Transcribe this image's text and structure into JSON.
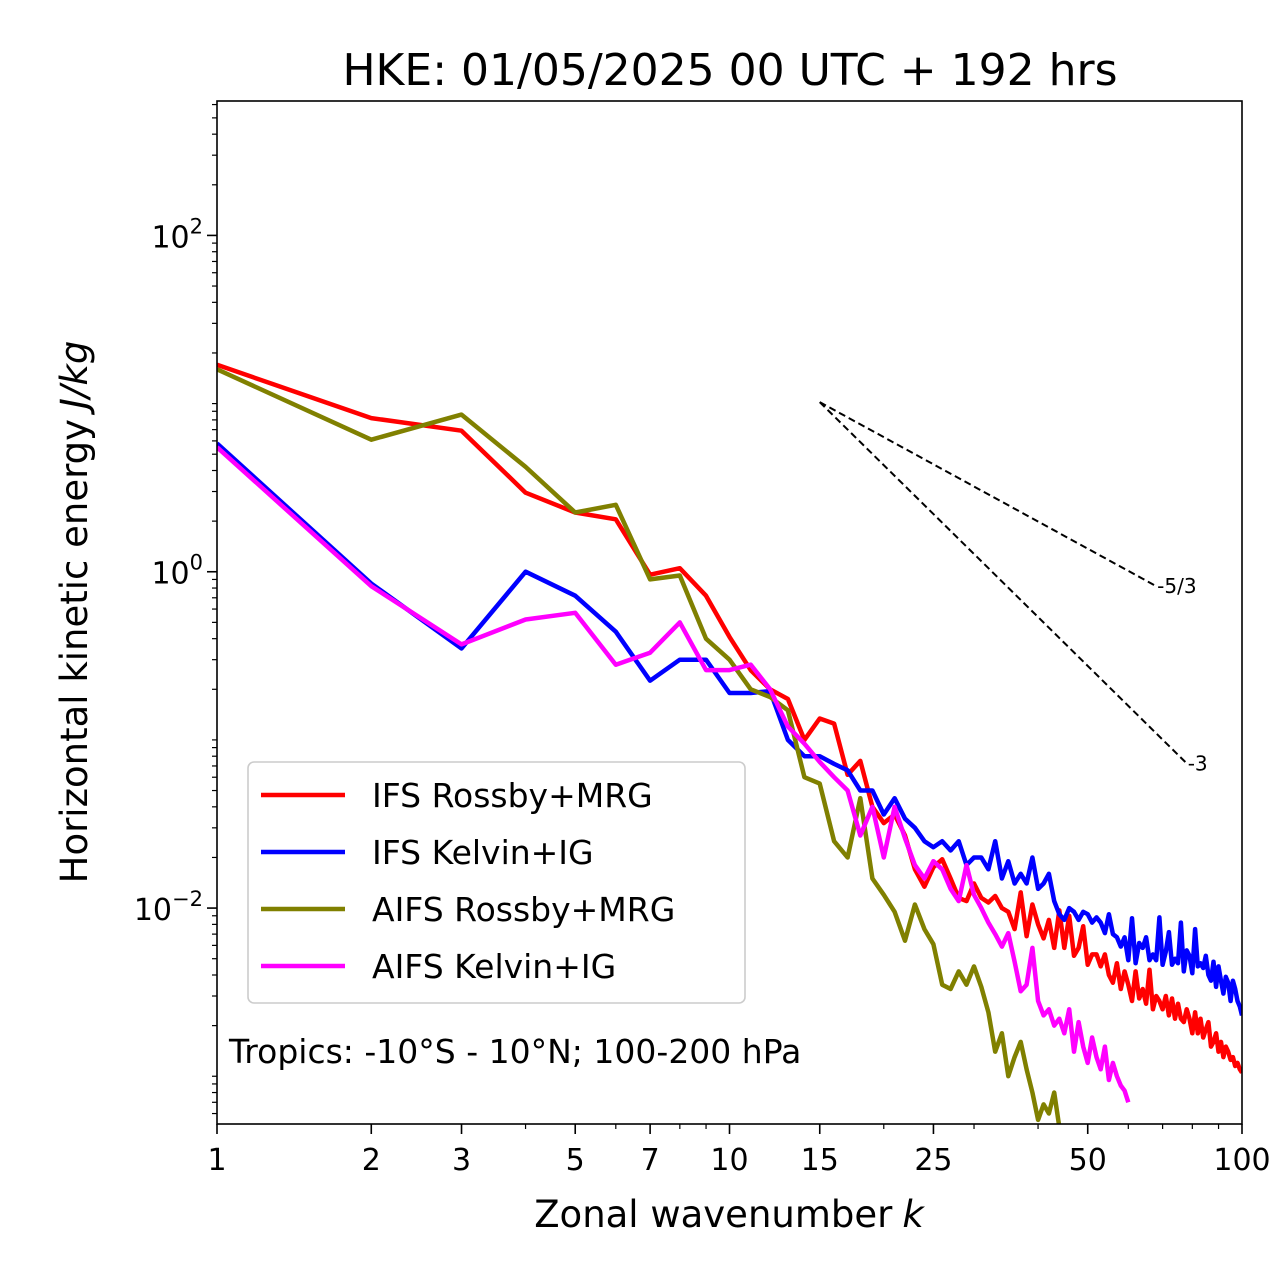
{
  "chart_data": {
    "type": "line",
    "title": "HKE: 01/05/2025 00 UTC + 192 hrs",
    "xlabel": "Zonal wavenumber",
    "xlabel_italic": "k",
    "ylabel": "Horizontal kinetic energy",
    "ylabel_italic": "J/kg",
    "xscale": "log",
    "yscale": "log",
    "xlim": [
      1,
      100
    ],
    "ylim": [
      0.00052,
      630
    ],
    "x_ticks": [
      1,
      2,
      3,
      5,
      7,
      10,
      15,
      25,
      50,
      100
    ],
    "x_tick_labels": [
      "1",
      "2",
      "3",
      "5",
      "7",
      "10",
      "15",
      "25",
      "50",
      "100"
    ],
    "y_ticks": [
      1,
      100,
      0.01
    ],
    "y_tick_labels": [
      {
        "base": "10",
        "exp": "0"
      },
      {
        "base": "10",
        "exp": "2"
      },
      {
        "base": "10",
        "exp": "−2"
      }
    ],
    "legend_position": "lower-left",
    "annotation": "Tropics: -10°S - 10°N; 100-200 hPa",
    "reference_slopes": [
      {
        "label": "-5/3",
        "slope": -1.6667,
        "x_start": 15,
        "x_end": 68,
        "y_start": 10.2
      },
      {
        "label": "-3",
        "slope": -3,
        "x_start": 15,
        "x_end": 78,
        "y_start": 10.2
      }
    ],
    "series": [
      {
        "name": "IFS Rossby+MRG",
        "color": "#ff0000",
        "x": [
          1,
          2,
          3,
          4,
          5,
          6,
          7,
          8,
          9,
          10,
          11,
          12,
          13,
          14,
          15,
          16,
          17,
          18,
          19,
          20,
          21,
          22,
          23,
          24,
          25,
          26,
          27,
          28,
          29,
          30,
          31,
          32,
          33,
          34,
          35,
          36,
          37,
          38,
          39,
          40,
          41,
          42,
          43,
          44,
          45,
          46,
          47,
          48,
          49,
          50,
          51,
          52,
          53,
          54,
          55,
          56,
          57,
          58,
          59,
          60,
          61,
          62,
          63,
          64,
          65,
          66,
          67,
          68,
          69,
          70,
          71,
          72,
          73,
          74,
          75,
          76,
          77,
          78,
          79,
          80,
          81,
          82,
          83,
          84,
          85,
          86,
          87,
          88,
          89,
          90,
          91,
          92,
          93,
          94,
          95,
          96,
          97,
          98,
          99,
          100
        ],
        "y": [
          17,
          8.2,
          6.9,
          2.95,
          2.25,
          2.05,
          0.96,
          1.05,
          0.72,
          0.41,
          0.26,
          0.2,
          0.175,
          0.1,
          0.134,
          0.125,
          0.062,
          0.075,
          0.04,
          0.032,
          0.036,
          0.027,
          0.017,
          0.0134,
          0.0175,
          0.0195,
          0.015,
          0.0115,
          0.011,
          0.014,
          0.0115,
          0.0108,
          0.0118,
          0.01,
          0.0095,
          0.0075,
          0.0124,
          0.0068,
          0.0105,
          0.008,
          0.0066,
          0.0085,
          0.0058,
          0.0097,
          0.0058,
          0.009,
          0.0052,
          0.0058,
          0.0078,
          0.0046,
          0.0053,
          0.0053,
          0.0045,
          0.0053,
          0.004,
          0.0036,
          0.0047,
          0.0033,
          0.0042,
          0.0035,
          0.0028,
          0.0042,
          0.0029,
          0.0033,
          0.0027,
          0.0043,
          0.0025,
          0.003,
          0.0028,
          0.0025,
          0.003,
          0.0023,
          0.0029,
          0.0022,
          0.0027,
          0.0022,
          0.0021,
          0.0025,
          0.0022,
          0.0018,
          0.0024,
          0.0018,
          0.0022,
          0.0017,
          0.0019,
          0.0021,
          0.0015,
          0.0016,
          0.0018,
          0.0014,
          0.0016,
          0.0013,
          0.0015,
          0.0014,
          0.00125,
          0.0013,
          0.00115,
          0.0012,
          0.0011,
          0.00105
        ]
      },
      {
        "name": "IFS Kelvin+IG",
        "color": "#0000ff",
        "x": [
          1,
          2,
          3,
          4,
          5,
          6,
          7,
          8,
          9,
          10,
          11,
          12,
          13,
          14,
          15,
          16,
          17,
          18,
          19,
          20,
          21,
          22,
          23,
          24,
          25,
          26,
          27,
          28,
          29,
          30,
          31,
          32,
          33,
          34,
          35,
          36,
          37,
          38,
          39,
          40,
          41,
          42,
          43,
          44,
          45,
          46,
          47,
          48,
          49,
          50,
          51,
          52,
          53,
          54,
          55,
          56,
          57,
          58,
          59,
          60,
          61,
          62,
          63,
          64,
          65,
          66,
          67,
          68,
          69,
          70,
          71,
          72,
          73,
          74,
          75,
          76,
          77,
          78,
          79,
          80,
          81,
          82,
          83,
          84,
          85,
          86,
          87,
          88,
          89,
          90,
          91,
          92,
          93,
          94,
          95,
          96,
          97,
          98,
          99,
          100
        ],
        "y": [
          5.8,
          0.85,
          0.35,
          1.0,
          0.72,
          0.44,
          0.225,
          0.3,
          0.3,
          0.19,
          0.19,
          0.195,
          0.1,
          0.08,
          0.08,
          0.072,
          0.066,
          0.05,
          0.05,
          0.036,
          0.045,
          0.034,
          0.03,
          0.025,
          0.023,
          0.025,
          0.022,
          0.025,
          0.018,
          0.02,
          0.02,
          0.017,
          0.025,
          0.015,
          0.019,
          0.014,
          0.016,
          0.014,
          0.02,
          0.013,
          0.014,
          0.016,
          0.011,
          0.0092,
          0.0085,
          0.01,
          0.0095,
          0.0085,
          0.0095,
          0.0092,
          0.0082,
          0.0088,
          0.0082,
          0.0071,
          0.0092,
          0.007,
          0.0067,
          0.0059,
          0.0067,
          0.0049,
          0.0087,
          0.0047,
          0.0062,
          0.0058,
          0.0067,
          0.0049,
          0.0053,
          0.0049,
          0.0088,
          0.0046,
          0.0055,
          0.0072,
          0.0046,
          0.005,
          0.0047,
          0.0082,
          0.0042,
          0.0056,
          0.0052,
          0.0041,
          0.0075,
          0.0045,
          0.0047,
          0.0044,
          0.0052,
          0.004,
          0.0037,
          0.0048,
          0.0034,
          0.0045,
          0.0037,
          0.0031,
          0.0039,
          0.0036,
          0.0028,
          0.0037,
          0.0033,
          0.0028,
          0.0026,
          0.0023
        ]
      },
      {
        "name": "AIFS Rossby+MRG",
        "color": "#808000",
        "x": [
          1,
          2,
          3,
          4,
          5,
          6,
          7,
          8,
          9,
          10,
          11,
          12,
          13,
          14,
          15,
          16,
          17,
          18,
          19,
          20,
          21,
          22,
          23,
          24,
          25,
          26,
          27,
          28,
          29,
          30,
          31,
          32,
          33,
          34,
          35,
          36,
          37,
          38,
          39,
          40,
          41,
          42,
          43,
          44,
          45,
          46,
          47,
          48,
          49,
          50
        ],
        "y": [
          16,
          6.1,
          8.6,
          4.2,
          2.25,
          2.5,
          0.9,
          0.95,
          0.4,
          0.3,
          0.2,
          0.18,
          0.15,
          0.06,
          0.055,
          0.025,
          0.02,
          0.045,
          0.015,
          0.012,
          0.0095,
          0.0064,
          0.0105,
          0.0075,
          0.0061,
          0.0035,
          0.0033,
          0.0042,
          0.0035,
          0.0045,
          0.0034,
          0.0024,
          0.0014,
          0.0018,
          0.001,
          0.0013,
          0.0016,
          0.0011,
          0.0008,
          0.00055,
          0.00068,
          0.0006,
          0.0008,
          0.0005,
          0.00045,
          0.00042,
          0.0004,
          0.00038,
          0.00036,
          0.00033
        ]
      },
      {
        "name": "AIFS Kelvin+IG",
        "color": "#ff00ff",
        "x": [
          1,
          2,
          3,
          4,
          5,
          6,
          7,
          8,
          9,
          10,
          11,
          12,
          13,
          14,
          15,
          16,
          17,
          18,
          19,
          20,
          21,
          22,
          23,
          24,
          25,
          26,
          27,
          28,
          29,
          30,
          31,
          32,
          33,
          34,
          35,
          36,
          37,
          38,
          39,
          40,
          41,
          42,
          43,
          44,
          45,
          46,
          47,
          48,
          49,
          50,
          51,
          52,
          53,
          54,
          55,
          56,
          57,
          58,
          59,
          60
        ],
        "y": [
          5.5,
          0.82,
          0.37,
          0.52,
          0.57,
          0.28,
          0.33,
          0.5,
          0.26,
          0.26,
          0.28,
          0.2,
          0.12,
          0.095,
          0.074,
          0.06,
          0.05,
          0.027,
          0.04,
          0.02,
          0.04,
          0.026,
          0.018,
          0.015,
          0.019,
          0.017,
          0.013,
          0.011,
          0.018,
          0.012,
          0.01,
          0.0082,
          0.007,
          0.0059,
          0.0071,
          0.0048,
          0.0032,
          0.0035,
          0.0058,
          0.0028,
          0.0023,
          0.0025,
          0.002,
          0.0022,
          0.0018,
          0.0025,
          0.0014,
          0.0021,
          0.0015,
          0.0012,
          0.0017,
          0.0013,
          0.0011,
          0.0015,
          0.00095,
          0.0012,
          0.001,
          0.00088,
          0.00082,
          0.0007
        ]
      }
    ]
  }
}
